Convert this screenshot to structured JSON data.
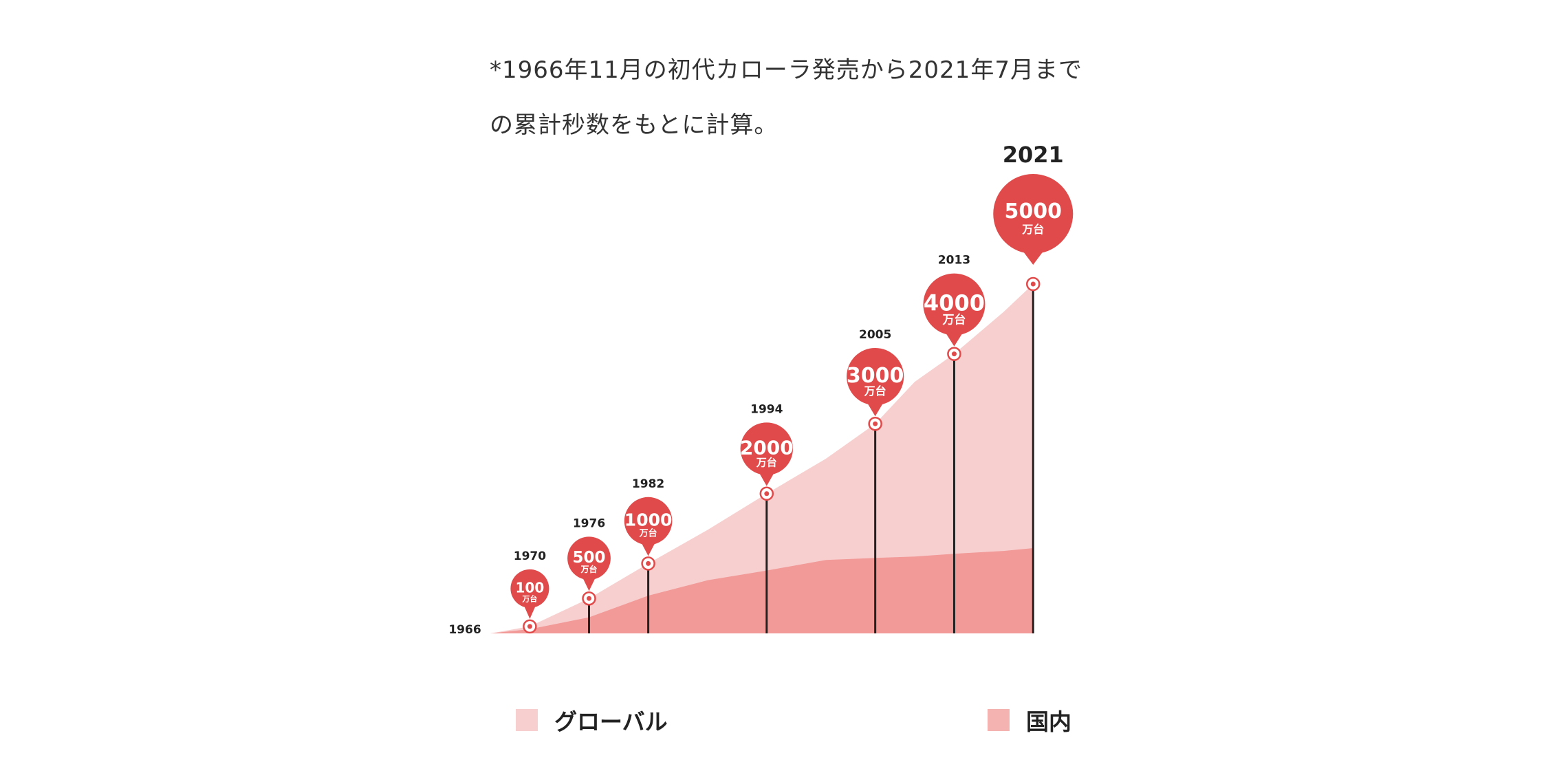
{
  "note": {
    "line1": "*1966年11月の初代カローラ発売から2021年7月まで",
    "line2": "の累計秒数をもとに計算。"
  },
  "colors": {
    "global_area": "#f8cfcf",
    "domestic_area": "#f19a98",
    "bubble": "#e04a4a",
    "stem": "#222222"
  },
  "chart_data": {
    "type": "area",
    "title": "",
    "xlabel": "",
    "ylabel": "",
    "start_year_label": "1966",
    "unit_label": "万台",
    "milestones": [
      {
        "year": "1970",
        "value": 100
      },
      {
        "year": "1976",
        "value": 500
      },
      {
        "year": "1982",
        "value": 1000
      },
      {
        "year": "1994",
        "value": 2000
      },
      {
        "year": "2005",
        "value": 3000
      },
      {
        "year": "2013",
        "value": 4000
      },
      {
        "year": "2021",
        "value": 5000
      }
    ],
    "series": [
      {
        "name": "グローバル",
        "x": [
          1966,
          1970,
          1976,
          1982,
          1988,
          1994,
          2000,
          2005,
          2009,
          2013,
          2018,
          2021
        ],
        "values": [
          0,
          100,
          500,
          1000,
          1480,
          2000,
          2500,
          3000,
          3600,
          4000,
          4600,
          5000
        ]
      },
      {
        "name": "国内",
        "x": [
          1966,
          1970,
          1976,
          1982,
          1988,
          1994,
          2000,
          2005,
          2009,
          2013,
          2018,
          2021
        ],
        "values": [
          0,
          60,
          230,
          540,
          760,
          900,
          1050,
          1080,
          1100,
          1140,
          1180,
          1220
        ]
      }
    ],
    "legend": [
      {
        "name": "グローバル",
        "color": "#f8cfcf"
      },
      {
        "name": "国内",
        "color": "#f4b2b0"
      }
    ]
  }
}
